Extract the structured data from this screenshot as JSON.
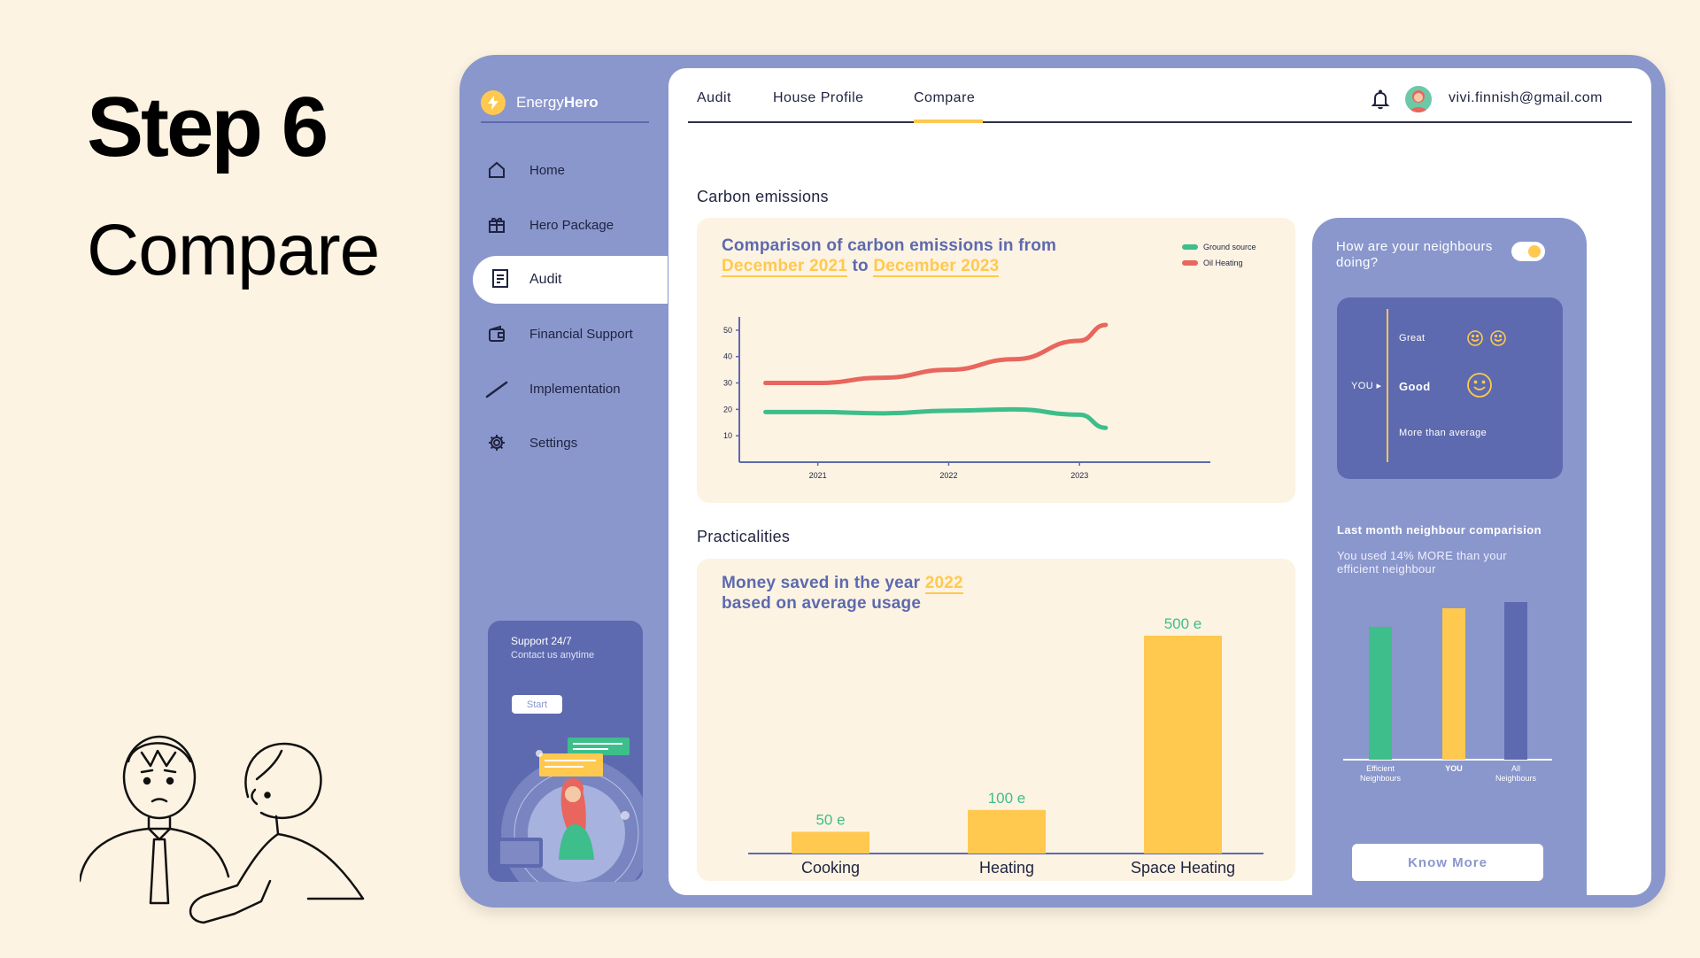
{
  "slide": {
    "title": "Step 6",
    "subtitle": "Compare"
  },
  "app": {
    "name_light": "Energy",
    "name_bold": "Hero"
  },
  "sidebar": {
    "items": [
      {
        "label": "Home",
        "icon": "home-icon"
      },
      {
        "label": "Hero Package",
        "icon": "gift-icon"
      },
      {
        "label": "Audit",
        "icon": "clipboard-icon",
        "active": true
      },
      {
        "label": "Financial Support",
        "icon": "wallet-icon"
      },
      {
        "label": "Implementation",
        "icon": "pen-icon"
      },
      {
        "label": "Settings",
        "icon": "gear-icon"
      }
    ],
    "support": {
      "title": "Support 24/7",
      "subtitle": "Contact us anytime",
      "button": "Start"
    }
  },
  "header": {
    "tabs": [
      {
        "label": "Audit"
      },
      {
        "label": "House Profile"
      },
      {
        "label": "Compare",
        "active": true
      }
    ],
    "email": "vivi.finnish@gmail.com"
  },
  "carbon": {
    "section_label": "Carbon emissions",
    "title_prefix": "Comparison of carbon emissions in from",
    "date_from": "December 2021",
    "title_to": "to",
    "date_to": "December 2023"
  },
  "practicalities": {
    "section_label": "Practicalities",
    "title_prefix": "Money saved in the year",
    "year": "2022",
    "title_suffix": "based on average usage"
  },
  "neighbours": {
    "question": "How are your neighbours doing?",
    "toggle_on": true,
    "you_label": "YOU",
    "great": "Great",
    "good": "Good",
    "more_than_average": "More than average",
    "last_month_title": "Last month neighbour comparision",
    "last_month_text": "You used 14% MORE than your efficient neighbour",
    "know_more": "Know More"
  },
  "colors": {
    "frame": "#8A97CC",
    "dark_blue": "#5D6AAF",
    "yellow": "#FFC94F",
    "green": "#3DBE8B",
    "red": "#E8665E",
    "cream": "#FDF3E2"
  },
  "chart_data": [
    {
      "type": "line",
      "title": "Comparison of carbon emissions in from December 2021 to December 2023",
      "x": [
        2020.6,
        2021,
        2021.5,
        2022,
        2022.5,
        2023,
        2023.2
      ],
      "x_ticks": [
        2021,
        2022,
        2023
      ],
      "xlim": [
        2020.4,
        2024.0
      ],
      "ylim": [
        0,
        55
      ],
      "y_ticks": [
        10,
        20,
        30,
        40,
        50
      ],
      "series": [
        {
          "name": "Ground source",
          "color": "#3DBE8B",
          "values": [
            19,
            19,
            18.5,
            19.5,
            20,
            18,
            13
          ]
        },
        {
          "name": "Oil Heating",
          "color": "#E8665E",
          "values": [
            30,
            30,
            32,
            35,
            39,
            46,
            52
          ]
        }
      ],
      "legend": "top-right",
      "grid": false
    },
    {
      "type": "bar",
      "title": "Money saved in the year 2022 based on average usage",
      "categories": [
        "Cooking",
        "Heating",
        "Space Heating"
      ],
      "values": [
        50,
        100,
        500
      ],
      "value_labels": [
        "50 e",
        "100 e",
        "500 e"
      ],
      "ylim": [
        0,
        500
      ],
      "color": "#FFC94F"
    },
    {
      "type": "bar",
      "title": "Last month neighbour comparision",
      "categories": [
        "Efficient Neighbours",
        "YOU",
        "All Neighbours"
      ],
      "values": [
        86,
        98,
        102
      ],
      "ylim": [
        0,
        102
      ],
      "colors": [
        "#3DBE8B",
        "#FFC94F",
        "#5D6AAF"
      ]
    }
  ]
}
